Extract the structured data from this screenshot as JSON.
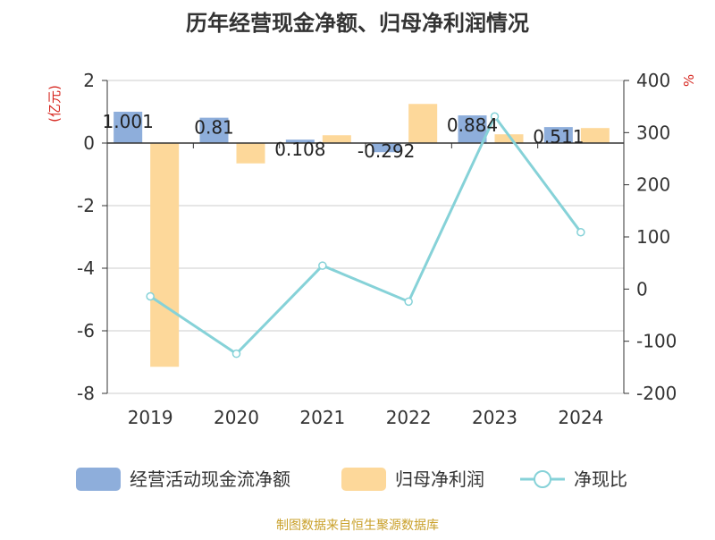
{
  "chart_data": {
    "type": "bar",
    "title": "历年经营现金净额、归母净利润情况",
    "ylabel": "(亿元)",
    "y2label": "%",
    "categories": [
      "2019",
      "2020",
      "2021",
      "2022",
      "2023",
      "2024"
    ],
    "ylim": [
      -8,
      2
    ],
    "yticks": [
      2,
      0,
      -2,
      -4,
      -6,
      -8
    ],
    "y2lim": [
      -200,
      400
    ],
    "y2ticks": [
      400,
      300,
      200,
      100,
      0,
      -100,
      -200
    ],
    "grid": true,
    "legend_position": "bottom",
    "series": [
      {
        "name": "经营活动现金流净额",
        "type": "bar",
        "axis": "left",
        "color": "#8eaedb",
        "values": [
          1.001,
          0.81,
          0.108,
          -0.292,
          0.884,
          0.511
        ],
        "labels": [
          "1.001",
          "0.81",
          "0.108",
          "-0.292",
          "0.884",
          "0.511"
        ]
      },
      {
        "name": "归母净利润",
        "type": "bar",
        "axis": "left",
        "color": "#fdd89a",
        "values": [
          -7.15,
          -0.65,
          0.25,
          1.25,
          0.28,
          0.48
        ]
      },
      {
        "name": "净现比",
        "type": "line",
        "axis": "right",
        "color": "#86d2d8",
        "values": [
          -14,
          -124,
          45,
          -24,
          331,
          109
        ]
      }
    ]
  },
  "footer": {
    "source": "制图数据来自恒生聚源数据库"
  }
}
